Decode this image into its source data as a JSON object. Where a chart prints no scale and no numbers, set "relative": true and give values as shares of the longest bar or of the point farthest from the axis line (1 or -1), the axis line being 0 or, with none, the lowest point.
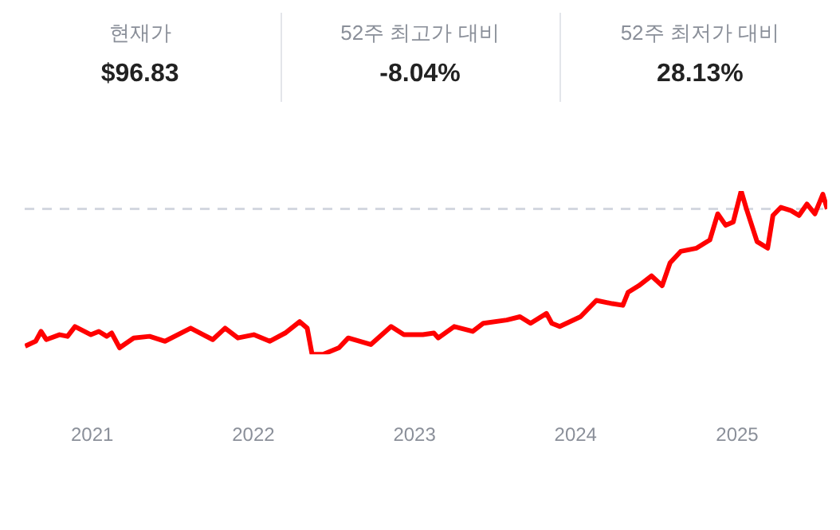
{
  "chart_data": {
    "type": "line",
    "relative": true,
    "color": "#ff0000",
    "annotations": [
      "현재가",
      "$96.83",
      "52주 최고가 대비",
      "-8.04%",
      "52주 최저가 대비",
      "28.13%"
    ],
    "x": [
      "2020-08-02",
      "2020-08-26",
      "2020-09-07",
      "2020-09-19",
      "2020-10-19",
      "2020-11-06",
      "2020-11-23",
      "2020-12-29",
      "2021-01-16",
      "2021-02-03",
      "2021-02-14",
      "2021-03-04",
      "2021-04-05",
      "2021-05-11",
      "2021-06-15",
      "2021-08-12",
      "2021-10-01",
      "2021-10-29",
      "2021-11-27",
      "2022-01-02",
      "2022-02-07",
      "2022-03-14",
      "2022-04-16",
      "2022-05-03",
      "2022-05-14",
      "2022-06-08",
      "2022-07-14",
      "2022-08-04",
      "2022-09-24",
      "2022-11-09",
      "2022-12-08",
      "2023-01-20",
      "2023-02-14",
      "2023-02-24",
      "2023-04-01",
      "2023-05-13",
      "2023-06-06",
      "2023-07-29",
      "2023-08-28",
      "2023-09-21",
      "2023-10-27",
      "2023-11-08",
      "2023-11-26",
      "2024-01-12",
      "2024-02-17",
      "2024-03-24",
      "2024-04-17",
      "2024-04-29",
      "2024-05-23",
      "2024-06-21",
      "2024-07-15",
      "2024-08-02",
      "2024-08-26",
      "2024-10-01",
      "2024-10-31",
      "2024-11-18",
      "2024-12-06",
      "2024-12-23",
      "2025-01-10",
      "2025-01-22",
      "2025-02-15",
      "2025-03-11",
      "2025-03-23",
      "2025-04-10",
      "2025-05-03",
      "2025-05-21",
      "2025-06-08",
      "2025-06-26",
      "2025-07-14",
      "2025-07-24"
    ],
    "values": [
      0.05,
      0.08,
      0.14,
      0.09,
      0.12,
      0.11,
      0.17,
      0.12,
      0.14,
      0.11,
      0.13,
      0.04,
      0.1,
      0.11,
      0.08,
      0.16,
      0.09,
      0.16,
      0.1,
      0.12,
      0.08,
      0.13,
      0.2,
      0.16,
      0.0,
      0.0,
      0.04,
      0.1,
      0.06,
      0.17,
      0.12,
      0.12,
      0.13,
      0.1,
      0.17,
      0.14,
      0.19,
      0.21,
      0.23,
      0.19,
      0.25,
      0.19,
      0.17,
      0.23,
      0.33,
      0.31,
      0.3,
      0.38,
      0.42,
      0.48,
      0.42,
      0.56,
      0.63,
      0.65,
      0.7,
      0.86,
      0.79,
      0.81,
      1.0,
      0.89,
      0.69,
      0.65,
      0.85,
      0.9,
      0.88,
      0.85,
      0.92,
      0.86,
      0.98,
      0.89
    ],
    "xlim": [
      "2020-08-01",
      "2025-07-24"
    ],
    "xticks": [
      {
        "value": "2021",
        "label": "2021"
      },
      {
        "value": "2022",
        "label": "2022"
      },
      {
        "value": "2023",
        "label": "2023"
      },
      {
        "value": "2024",
        "label": "2024"
      },
      {
        "value": "2025",
        "label": "2025"
      }
    ],
    "ref_lines": [
      {
        "axis": "y",
        "value": 0.89,
        "color": "#d3d7e0",
        "line_style": "dashed"
      }
    ],
    "grid": false,
    "legend": false,
    "tick_labels": "x",
    "marker": "none",
    "line_style": "solid"
  }
}
